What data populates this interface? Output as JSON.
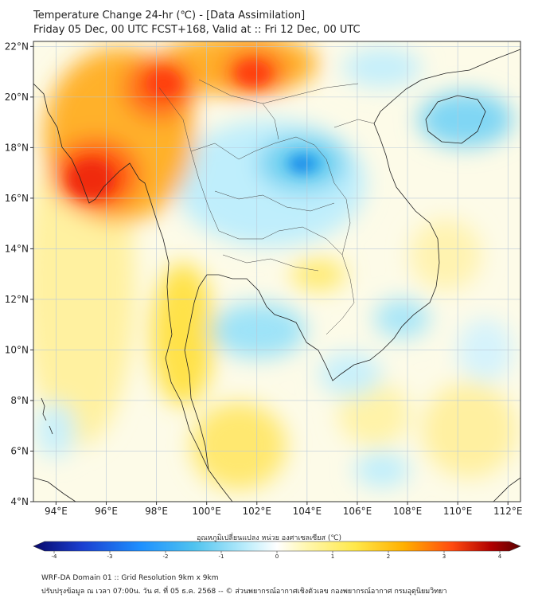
{
  "title": {
    "line1": "Temperature Change 24-hr (℃) - [Data Assimilation]",
    "line2": "Friday 05 Dec, 00 UTC FCST+168, Valid at :: Fri 12 Dec, 00 UTC"
  },
  "map": {
    "lat_labels": [
      "22°N",
      "20°N",
      "18°N",
      "16°N",
      "14°N",
      "12°N",
      "10°N",
      "8°N",
      "6°N",
      "4°N"
    ],
    "lon_labels": [
      "94°E",
      "96°E",
      "98°E",
      "100°E",
      "102°E",
      "104°E",
      "106°E",
      "108°E",
      "110°E",
      "112°E"
    ],
    "lat_range": [
      4,
      22.2
    ],
    "lon_range": [
      93.1,
      112.5
    ]
  },
  "colorbar": {
    "title": "อุณหภูมิเปลี่ยนแปลง หน่วย องศาเซลเซียส (℃)",
    "ticks": [
      "-4",
      "-3",
      "-2",
      "-1",
      "0",
      "1",
      "2",
      "3",
      "4"
    ],
    "range": [
      -4,
      4
    ],
    "colors": [
      "#08086b",
      "#1a3fd0",
      "#1e90ff",
      "#4fc3ef",
      "#bfeefc",
      "#ffffff",
      "#fff7b0",
      "#ffe84a",
      "#ffb000",
      "#ff4a10",
      "#b00000",
      "#5a0000"
    ]
  },
  "footer": {
    "line1": "WRF-DA Domain 01 :: Grid Resolution 9km x 9km",
    "line2": "ปรับปรุงข้อมูล ณ เวลา 07:00น. วัน ศ. ที่ 05 ธ.ค. 2568 -- © ส่วนพยากรณ์อากาศเชิงตัวเลข กองพยากรณ์อากาศ กรมอุตุนิยมวิทยา"
  }
}
